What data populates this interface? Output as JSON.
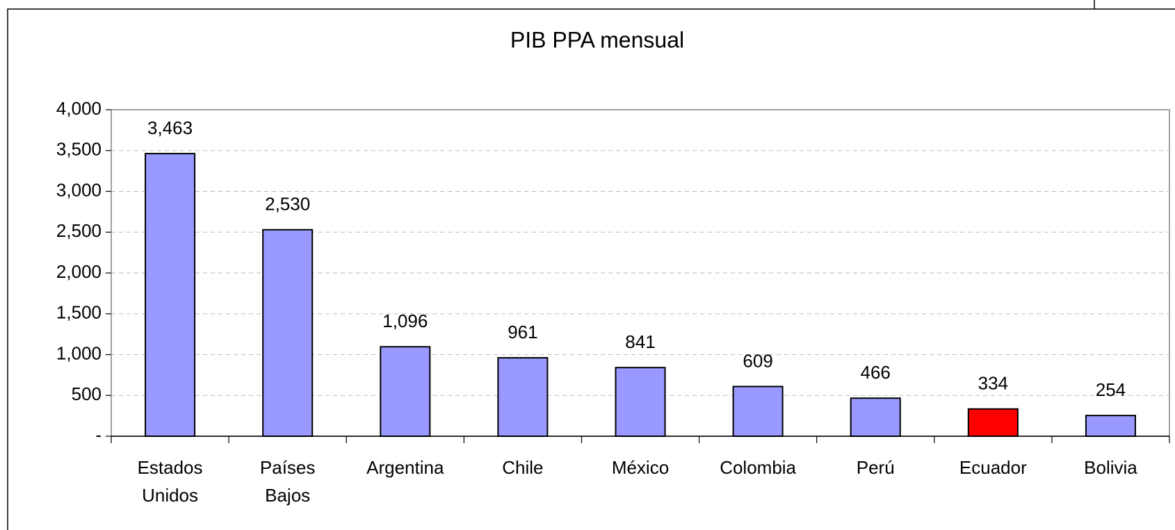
{
  "chart_data": {
    "type": "bar",
    "title": "PIB PPA mensual",
    "categories": [
      "Estados Unidos",
      "Países Bajos",
      "Argentina",
      "Chile",
      "México",
      "Colombia",
      "Perú",
      "Ecuador",
      "Bolivia"
    ],
    "values": [
      3463,
      2530,
      1096,
      961,
      841,
      609,
      466,
      334,
      254
    ],
    "value_labels": [
      "3,463",
      "2,530",
      "1,096",
      "961",
      "841",
      "609",
      "466",
      "334",
      "254"
    ],
    "colors": [
      "#9999ff",
      "#9999ff",
      "#9999ff",
      "#9999ff",
      "#9999ff",
      "#9999ff",
      "#9999ff",
      "#ff0000",
      "#9999ff"
    ],
    "ylim": [
      0,
      4000
    ],
    "yticks": [
      {
        "value": 0,
        "label": "-"
      },
      500,
      {
        "value": 1000,
        "label": "1,000"
      },
      {
        "value": 1500,
        "label": "1,500"
      },
      {
        "value": 2000,
        "label": "2,000"
      },
      {
        "value": 2500,
        "label": "2,500"
      },
      {
        "value": 3000,
        "label": "3,000"
      },
      {
        "value": 3500,
        "label": "3,500"
      },
      {
        "value": 4000,
        "label": "4,000"
      }
    ],
    "grid": true
  }
}
